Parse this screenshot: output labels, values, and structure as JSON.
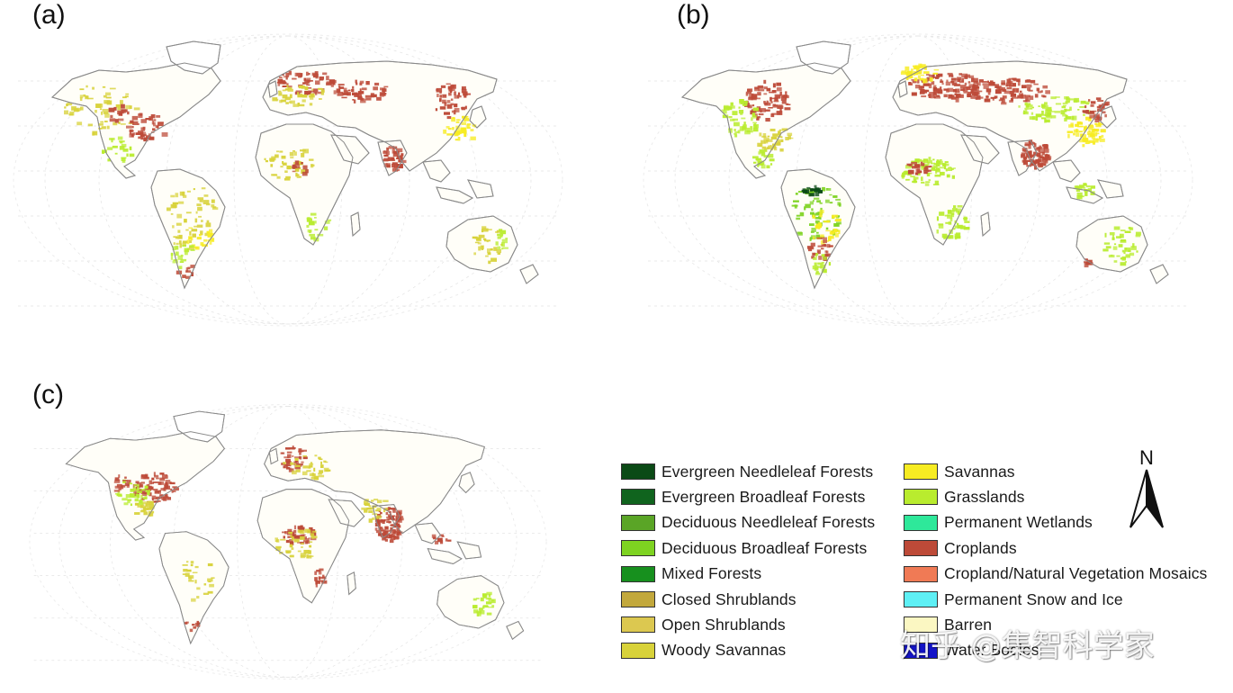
{
  "panels": [
    {
      "label": "(a)"
    },
    {
      "label": "(b)"
    },
    {
      "label": "(c)"
    }
  ],
  "legend": [
    {
      "label": "Evergreen Needleleaf Forests",
      "color": "#0b4a16"
    },
    {
      "label": "Evergreen Broadleaf Forests",
      "color": "#10641e"
    },
    {
      "label": "Deciduous Needleleaf Forests",
      "color": "#5aa526"
    },
    {
      "label": "Deciduous Broadleaf Forests",
      "color": "#7ed321"
    },
    {
      "label": "Mixed Forests",
      "color": "#17901e"
    },
    {
      "label": "Closed Shrublands",
      "color": "#c2a83c"
    },
    {
      "label": "Open Shrublands",
      "color": "#dcc850"
    },
    {
      "label": "Woody Savannas",
      "color": "#d8d23a"
    },
    {
      "label": "Savannas",
      "color": "#f7ec22"
    },
    {
      "label": "Grasslands",
      "color": "#b9ec2e"
    },
    {
      "label": "Permanent Wetlands",
      "color": "#2ee89a"
    },
    {
      "label": "Croplands",
      "color": "#bd4a38"
    },
    {
      "label": "Cropland/Natural Vegetation Mosaics",
      "color": "#f07a55"
    },
    {
      "label": "Permanent Snow and Ice",
      "color": "#5ef0f5"
    },
    {
      "label": "Barren",
      "color": "#fbf7c2"
    },
    {
      "label": "Water Bodies",
      "color": "#1414c8"
    }
  ],
  "north_arrow": {
    "letter": "N"
  },
  "watermark": "知乎 @集智科学家"
}
